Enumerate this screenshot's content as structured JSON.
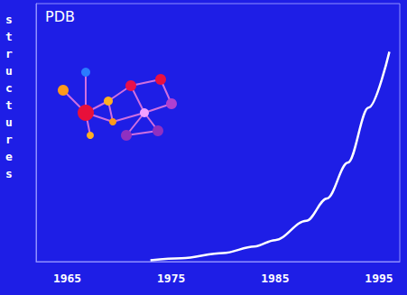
{
  "chart_data": {
    "type": "line",
    "title": "PDB",
    "ylabel": "structures",
    "x": [
      1973,
      1976,
      1980,
      1983,
      1985,
      1988,
      1990,
      1992,
      1994,
      1996
    ],
    "values": [
      30,
      80,
      200,
      350,
      500,
      950,
      1470,
      2300,
      3580,
      4880
    ],
    "color": "#ffffff",
    "xlim": [
      1962,
      1997
    ],
    "xticks": [
      1965,
      1975,
      1985,
      1995
    ],
    "ylim": [
      0,
      6000
    ],
    "grid": false,
    "tick_labels": "x"
  }
}
